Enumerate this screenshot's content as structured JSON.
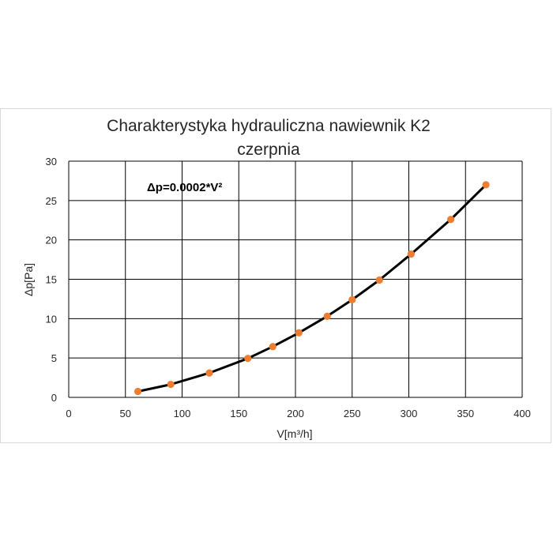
{
  "chart_data": {
    "type": "line",
    "title": "Charakterystyka hydrauliczna nawiewnik K2",
    "subtitle": "czerpnia",
    "xlabel": "V[m³/h]",
    "ylabel": "Δp[Pa]",
    "xlim": [
      0,
      400
    ],
    "ylim": [
      0,
      30
    ],
    "xticks": [
      "0",
      "50",
      "100",
      "150",
      "200",
      "250",
      "300",
      "350",
      "400"
    ],
    "yticks": [
      "0",
      "5",
      "10",
      "15",
      "20",
      "25",
      "30"
    ],
    "grid": true,
    "annotation": "Δp=0.0002*V²",
    "curve_color": "#000000",
    "marker_color": "#ed7d31",
    "series": [
      {
        "x": [
          61,
          90,
          124,
          158,
          180,
          203,
          228,
          250,
          274,
          302,
          337,
          368
        ],
        "values": [
          0.75,
          1.65,
          3.1,
          4.95,
          6.45,
          8.2,
          10.3,
          12.4,
          14.9,
          18.2,
          22.6,
          27.0
        ]
      }
    ]
  }
}
